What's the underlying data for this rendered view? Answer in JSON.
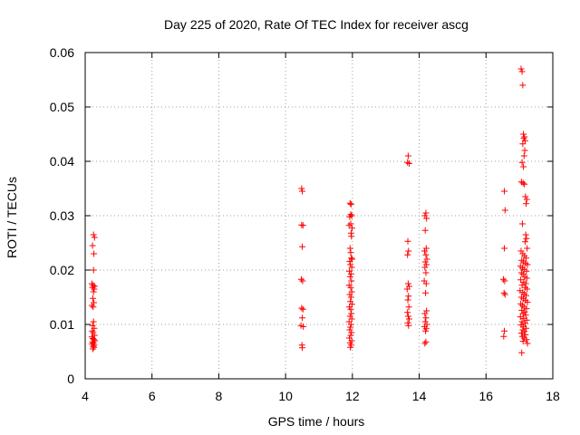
{
  "chart_data": {
    "type": "scatter",
    "title": "Day 225 of 2020, Rate Of TEC Index for receiver ascg",
    "xlabel": "GPS time / hours",
    "ylabel": "ROTI / TECUs",
    "xlim": [
      4,
      18
    ],
    "ylim": [
      0,
      0.06
    ],
    "x_ticks": [
      4,
      6,
      8,
      10,
      12,
      14,
      16,
      18
    ],
    "x_tick_labels": [
      "4",
      "6",
      "8",
      "10",
      "12",
      "14",
      "16",
      "18"
    ],
    "y_ticks": [
      0,
      0.01,
      0.02,
      0.03,
      0.04,
      0.05,
      0.06
    ],
    "y_tick_labels": [
      "0",
      "0.01",
      "0.02",
      "0.03",
      "0.04",
      "0.05",
      "0.06"
    ],
    "grid": true,
    "marker": "+",
    "color": "#ff0000",
    "series": [
      {
        "points": [
          [
            4.25,
            0.0265
          ],
          [
            4.28,
            0.026
          ],
          [
            4.22,
            0.0245
          ],
          [
            4.26,
            0.023
          ],
          [
            4.25,
            0.02
          ],
          [
            4.2,
            0.0175
          ],
          [
            4.24,
            0.0172
          ],
          [
            4.28,
            0.017
          ],
          [
            4.22,
            0.0168
          ],
          [
            4.27,
            0.0165
          ],
          [
            4.25,
            0.016
          ],
          [
            4.23,
            0.0148
          ],
          [
            4.26,
            0.014
          ],
          [
            4.2,
            0.0135
          ],
          [
            4.24,
            0.0132
          ],
          [
            4.25,
            0.0105
          ],
          [
            4.22,
            0.0098
          ],
          [
            4.27,
            0.0093
          ],
          [
            4.21,
            0.0088
          ],
          [
            4.24,
            0.0085
          ],
          [
            4.28,
            0.008
          ],
          [
            4.2,
            0.0077
          ],
          [
            4.23,
            0.0074
          ],
          [
            4.26,
            0.0072
          ],
          [
            4.29,
            0.007
          ],
          [
            4.22,
            0.0068
          ],
          [
            4.25,
            0.0066
          ],
          [
            4.21,
            0.0064
          ],
          [
            4.27,
            0.0062
          ],
          [
            4.24,
            0.006
          ],
          [
            4.26,
            0.0058
          ],
          [
            4.23,
            0.0055
          ],
          [
            10.48,
            0.035
          ],
          [
            10.5,
            0.0345
          ],
          [
            10.48,
            0.0283
          ],
          [
            10.52,
            0.0282
          ],
          [
            10.5,
            0.0243
          ],
          [
            10.47,
            0.0183
          ],
          [
            10.51,
            0.018
          ],
          [
            10.48,
            0.013
          ],
          [
            10.52,
            0.0128
          ],
          [
            10.5,
            0.0112
          ],
          [
            10.46,
            0.0098
          ],
          [
            10.53,
            0.0096
          ],
          [
            10.49,
            0.0062
          ],
          [
            10.5,
            0.0057
          ],
          [
            11.93,
            0.0323
          ],
          [
            11.96,
            0.0321
          ],
          [
            11.95,
            0.0302
          ],
          [
            11.98,
            0.03
          ],
          [
            11.92,
            0.0298
          ],
          [
            11.95,
            0.0285
          ],
          [
            11.9,
            0.0282
          ],
          [
            11.99,
            0.0277
          ],
          [
            11.96,
            0.0268
          ],
          [
            11.97,
            0.0262
          ],
          [
            11.93,
            0.024
          ],
          [
            11.95,
            0.0232
          ],
          [
            11.97,
            0.0222
          ],
          [
            11.99,
            0.022
          ],
          [
            11.92,
            0.0216
          ],
          [
            11.94,
            0.021
          ],
          [
            11.98,
            0.0205
          ],
          [
            11.91,
            0.0198
          ],
          [
            11.96,
            0.0193
          ],
          [
            11.93,
            0.0188
          ],
          [
            11.97,
            0.018
          ],
          [
            11.9,
            0.0172
          ],
          [
            11.95,
            0.0168
          ],
          [
            11.98,
            0.016
          ],
          [
            11.92,
            0.0155
          ],
          [
            11.96,
            0.015
          ],
          [
            11.94,
            0.0142
          ],
          [
            11.99,
            0.0137
          ],
          [
            11.91,
            0.0132
          ],
          [
            11.95,
            0.0128
          ],
          [
            11.97,
            0.012
          ],
          [
            11.93,
            0.0115
          ],
          [
            11.98,
            0.011
          ],
          [
            11.9,
            0.0105
          ],
          [
            11.96,
            0.01
          ],
          [
            11.94,
            0.0095
          ],
          [
            11.92,
            0.009
          ],
          [
            11.97,
            0.0085
          ],
          [
            11.95,
            0.008
          ],
          [
            11.91,
            0.0075
          ],
          [
            11.98,
            0.007
          ],
          [
            11.93,
            0.0066
          ],
          [
            11.96,
            0.0062
          ],
          [
            11.94,
            0.0058
          ],
          [
            13.67,
            0.041
          ],
          [
            13.65,
            0.0398
          ],
          [
            13.7,
            0.0396
          ],
          [
            13.66,
            0.0253
          ],
          [
            13.68,
            0.0235
          ],
          [
            13.65,
            0.0228
          ],
          [
            13.67,
            0.0175
          ],
          [
            13.7,
            0.017
          ],
          [
            13.64,
            0.0165
          ],
          [
            13.68,
            0.0152
          ],
          [
            13.66,
            0.0145
          ],
          [
            13.69,
            0.0132
          ],
          [
            13.65,
            0.0122
          ],
          [
            13.67,
            0.0115
          ],
          [
            13.7,
            0.011
          ],
          [
            13.66,
            0.0103
          ],
          [
            13.68,
            0.0098
          ],
          [
            14.2,
            0.0305
          ],
          [
            14.17,
            0.03
          ],
          [
            14.22,
            0.0295
          ],
          [
            14.18,
            0.0273
          ],
          [
            14.21,
            0.024
          ],
          [
            14.16,
            0.0235
          ],
          [
            14.2,
            0.0228
          ],
          [
            14.23,
            0.022
          ],
          [
            14.18,
            0.0215
          ],
          [
            14.22,
            0.021
          ],
          [
            14.17,
            0.0205
          ],
          [
            14.2,
            0.0195
          ],
          [
            14.15,
            0.018
          ],
          [
            14.21,
            0.0175
          ],
          [
            14.19,
            0.0158
          ],
          [
            14.22,
            0.0125
          ],
          [
            14.17,
            0.012
          ],
          [
            14.2,
            0.0112
          ],
          [
            14.18,
            0.0105
          ],
          [
            14.23,
            0.01
          ],
          [
            14.16,
            0.0096
          ],
          [
            14.21,
            0.0092
          ],
          [
            14.19,
            0.0088
          ],
          [
            14.2,
            0.0068
          ],
          [
            14.17,
            0.0065
          ],
          [
            16.55,
            0.0345
          ],
          [
            16.57,
            0.031
          ],
          [
            16.55,
            0.024
          ],
          [
            16.52,
            0.0183
          ],
          [
            16.56,
            0.018
          ],
          [
            16.54,
            0.0158
          ],
          [
            16.57,
            0.0155
          ],
          [
            16.55,
            0.0088
          ],
          [
            16.53,
            0.0078
          ],
          [
            17.05,
            0.057
          ],
          [
            17.08,
            0.0565
          ],
          [
            17.1,
            0.054
          ],
          [
            17.12,
            0.045
          ],
          [
            17.15,
            0.0445
          ],
          [
            17.13,
            0.0442
          ],
          [
            17.17,
            0.0438
          ],
          [
            17.1,
            0.0432
          ],
          [
            17.16,
            0.042
          ],
          [
            17.14,
            0.041
          ],
          [
            17.08,
            0.0398
          ],
          [
            17.12,
            0.039
          ],
          [
            17.06,
            0.0362
          ],
          [
            17.11,
            0.036
          ],
          [
            17.15,
            0.0358
          ],
          [
            17.18,
            0.0335
          ],
          [
            17.22,
            0.033
          ],
          [
            17.2,
            0.0322
          ],
          [
            17.09,
            0.0285
          ],
          [
            17.19,
            0.0265
          ],
          [
            17.21,
            0.0258
          ],
          [
            17.17,
            0.0252
          ],
          [
            17.23,
            0.024
          ],
          [
            17.05,
            0.0235
          ],
          [
            17.1,
            0.023
          ],
          [
            17.15,
            0.0226
          ],
          [
            17.2,
            0.0222
          ],
          [
            17.07,
            0.0218
          ],
          [
            17.12,
            0.0215
          ],
          [
            17.18,
            0.0212
          ],
          [
            17.24,
            0.021
          ],
          [
            17.03,
            0.0207
          ],
          [
            17.09,
            0.0204
          ],
          [
            17.14,
            0.0201
          ],
          [
            17.21,
            0.0198
          ],
          [
            17.06,
            0.0195
          ],
          [
            17.11,
            0.0192
          ],
          [
            17.16,
            0.0188
          ],
          [
            17.22,
            0.0185
          ],
          [
            17.04,
            0.0182
          ],
          [
            17.13,
            0.0178
          ],
          [
            17.19,
            0.0175
          ],
          [
            17.08,
            0.0172
          ],
          [
            17.17,
            0.0168
          ],
          [
            17.23,
            0.0165
          ],
          [
            17.02,
            0.0162
          ],
          [
            17.1,
            0.0159
          ],
          [
            17.15,
            0.0156
          ],
          [
            17.2,
            0.0153
          ],
          [
            17.06,
            0.015
          ],
          [
            17.12,
            0.0147
          ],
          [
            17.18,
            0.0144
          ],
          [
            17.24,
            0.0141
          ],
          [
            17.04,
            0.0138
          ],
          [
            17.09,
            0.0135
          ],
          [
            17.14,
            0.0132
          ],
          [
            17.21,
            0.0129
          ],
          [
            17.07,
            0.0126
          ],
          [
            17.16,
            0.0123
          ],
          [
            17.11,
            0.012
          ],
          [
            17.19,
            0.0117
          ],
          [
            17.03,
            0.0114
          ],
          [
            17.13,
            0.0111
          ],
          [
            17.22,
            0.0108
          ],
          [
            17.08,
            0.0105
          ],
          [
            17.17,
            0.0102
          ],
          [
            17.05,
            0.0099
          ],
          [
            17.12,
            0.0096
          ],
          [
            17.2,
            0.0093
          ],
          [
            17.1,
            0.009
          ],
          [
            17.15,
            0.0087
          ],
          [
            17.06,
            0.0084
          ],
          [
            17.18,
            0.0081
          ],
          [
            17.09,
            0.0078
          ],
          [
            17.14,
            0.0075
          ],
          [
            17.21,
            0.0072
          ],
          [
            17.11,
            0.0069
          ],
          [
            17.24,
            0.0065
          ],
          [
            17.07,
            0.0048
          ]
        ]
      }
    ]
  }
}
